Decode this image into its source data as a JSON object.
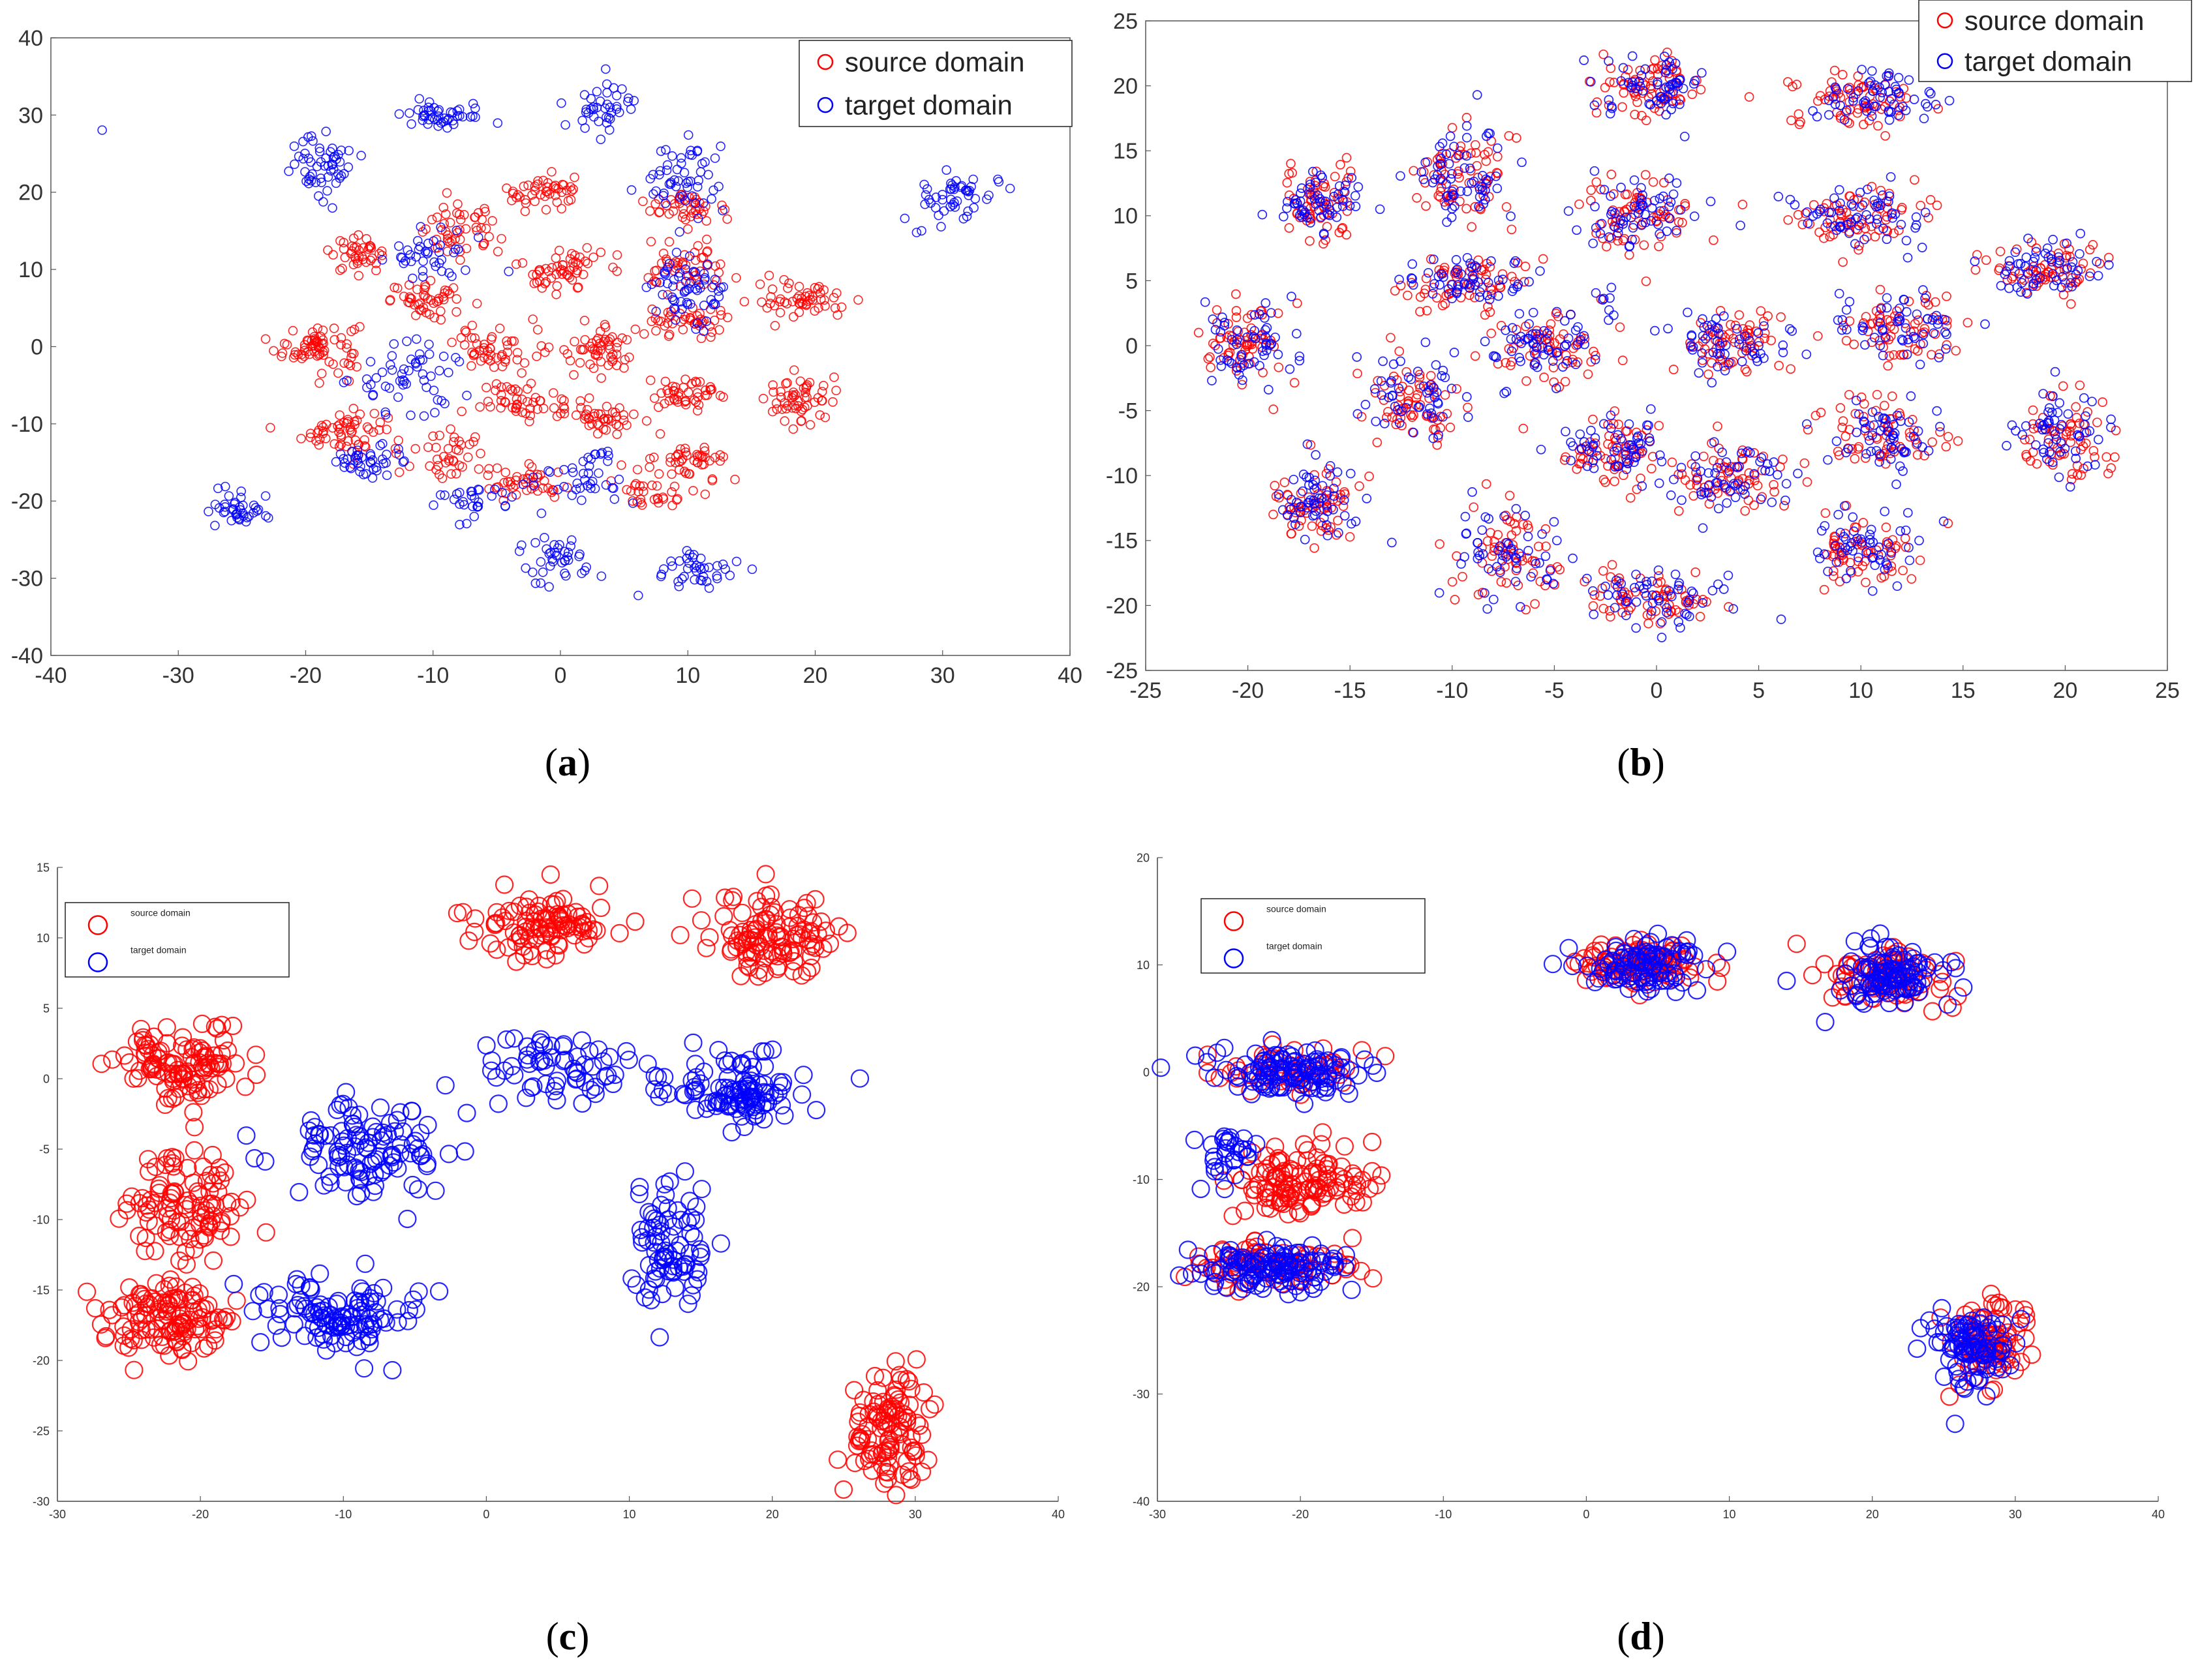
{
  "chart_data": [
    {
      "panel": "a",
      "type": "scatter",
      "caption_label": "a",
      "xlim": [
        -40,
        40
      ],
      "ylim": [
        -40,
        40
      ],
      "xticks": [
        "-40",
        "-30",
        "-20",
        "-10",
        "0",
        "10",
        "20",
        "30",
        "40"
      ],
      "yticks": [
        "40",
        "30",
        "20",
        "10",
        "0",
        "-10",
        "-20",
        "-30",
        "-40"
      ],
      "legend": {
        "position": "top-right",
        "source": "source domain",
        "target": "target domain"
      },
      "colors": {
        "source": "#ff0000",
        "target": "#0000ff"
      },
      "series": [
        {
          "name": "source domain",
          "clusters": [
            [
              -19,
              0,
              3,
              3,
              70
            ],
            [
              -17,
              -11,
              3,
              2.5,
              60
            ],
            [
              -16,
              12,
              2,
              2,
              40
            ],
            [
              -10,
              6,
              3,
              2,
              45
            ],
            [
              -8,
              15,
              3,
              3,
              50
            ],
            [
              -5,
              0,
              3,
              3,
              50
            ],
            [
              -3,
              -7,
              3,
              2,
              45
            ],
            [
              -3,
              -18,
              3,
              2,
              40
            ],
            [
              -1,
              20,
              3,
              2,
              45
            ],
            [
              0,
              10,
              3,
              3,
              55
            ],
            [
              3,
              0,
              3,
              3,
              55
            ],
            [
              3,
              -9,
              3,
              2,
              45
            ],
            [
              7,
              -19,
              3,
              2,
              30
            ],
            [
              10,
              -6,
              3,
              2,
              45
            ],
            [
              10,
              18,
              3,
              2,
              40
            ],
            [
              10,
              10,
              3,
              3,
              50
            ],
            [
              10,
              3,
              3,
              2,
              45
            ],
            [
              10,
              -15,
              3,
              2,
              45
            ],
            [
              19,
              6,
              3,
              2,
              55
            ],
            [
              19,
              -7,
              3,
              3,
              55
            ],
            [
              -9,
              -14,
              3,
              3,
              40
            ]
          ]
        },
        {
          "name": "target domain",
          "clusters": [
            [
              -36,
              28,
              0.1,
              0.1,
              1
            ],
            [
              -25,
              -21,
              2,
              2,
              40
            ],
            [
              -19,
              24,
              2.5,
              4,
              55
            ],
            [
              -9,
              30,
              3.5,
              2,
              45
            ],
            [
              -12,
              -4,
              4,
              4,
              55
            ],
            [
              -15,
              -15,
              3,
              2,
              40
            ],
            [
              -10,
              12,
              3,
              3,
              40
            ],
            [
              2,
              -17,
              3,
              3,
              40
            ],
            [
              0,
              -27,
              2.5,
              3,
              40
            ],
            [
              3,
              31,
              2.5,
              3,
              40
            ],
            [
              10,
              22,
              3,
              4,
              55
            ],
            [
              10,
              7,
              3,
              4,
              60
            ],
            [
              11,
              -29,
              3,
              2.5,
              40
            ],
            [
              31,
              19,
              3,
              3,
              50
            ],
            [
              -7,
              -20,
              3,
              2,
              30
            ]
          ]
        }
      ]
    },
    {
      "panel": "b",
      "type": "scatter",
      "caption_label": "b",
      "xlim": [
        -25,
        25
      ],
      "ylim": [
        -25,
        25
      ],
      "xticks": [
        "-25",
        "-20",
        "-15",
        "-10",
        "-5",
        "0",
        "5",
        "10",
        "15",
        "20",
        "25"
      ],
      "yticks": [
        "25",
        "20",
        "15",
        "10",
        "5",
        "0",
        "-5",
        "-10",
        "-15",
        "-20",
        "-25"
      ],
      "legend": {
        "position": "top-right",
        "source": "source domain",
        "target": "target domain"
      },
      "colors": {
        "source": "#ff0000",
        "target": "#0000ff"
      },
      "series": [
        {
          "name": "source domain",
          "clusters": [
            [
              -0.2,
              20,
              2.3,
              2,
              70
            ],
            [
              10,
              19,
              3.2,
              2,
              70
            ],
            [
              -9.5,
              13,
              2.2,
              3.5,
              70
            ],
            [
              -16.5,
              11,
              1.8,
              2.5,
              65
            ],
            [
              -1,
              10,
              2.5,
              2.5,
              70
            ],
            [
              10,
              10,
              3,
              2,
              70
            ],
            [
              19,
              6,
              2.5,
              1.8,
              65
            ],
            [
              -9,
              5,
              3,
              1.8,
              65
            ],
            [
              -20,
              0,
              2,
              3,
              65
            ],
            [
              -5.5,
              0,
              2.5,
              2.5,
              65
            ],
            [
              3.5,
              0,
              2.5,
              2.5,
              65
            ],
            [
              12,
              1.5,
              2.8,
              2.5,
              65
            ],
            [
              -12,
              -4,
              2.8,
              3,
              65
            ],
            [
              -2,
              -8,
              2.5,
              2.5,
              65
            ],
            [
              3.5,
              -10,
              2.5,
              2.5,
              65
            ],
            [
              11,
              -7,
              2.5,
              2.5,
              65
            ],
            [
              20,
              -7,
              2,
              3,
              65
            ],
            [
              -16.5,
              -12,
              2,
              3,
              65
            ],
            [
              -7.5,
              -16,
              2.5,
              3.5,
              65
            ],
            [
              -0.2,
              -19.5,
              3,
              2,
              65
            ],
            [
              10,
              -16,
              2.5,
              2.5,
              65
            ]
          ]
        },
        {
          "name": "target domain",
          "clusters": [
            [
              -0.2,
              20,
              2.3,
              2,
              60
            ],
            [
              10,
              19,
              3.2,
              2,
              60
            ],
            [
              -9.5,
              13,
              2.2,
              3.5,
              60
            ],
            [
              -16.5,
              11,
              1.8,
              2.5,
              55
            ],
            [
              -1,
              10,
              2.5,
              2.5,
              60
            ],
            [
              10,
              10,
              3,
              2,
              60
            ],
            [
              19,
              6,
              2.5,
              1.8,
              55
            ],
            [
              -9,
              5,
              3,
              1.8,
              55
            ],
            [
              -20,
              0,
              2,
              3,
              55
            ],
            [
              -5.5,
              0,
              2.5,
              2.5,
              55
            ],
            [
              3.5,
              0,
              2.5,
              2.5,
              55
            ],
            [
              12,
              1.5,
              2.8,
              2.5,
              55
            ],
            [
              -12,
              -4,
              2.8,
              3,
              55
            ],
            [
              -2,
              -8,
              2.5,
              2.5,
              55
            ],
            [
              3.5,
              -10,
              2.5,
              2.5,
              55
            ],
            [
              11,
              -7,
              2.5,
              2.5,
              55
            ],
            [
              20,
              -7,
              2,
              3,
              55
            ],
            [
              -16.5,
              -12,
              2,
              3,
              55
            ],
            [
              -7.5,
              -16,
              2.5,
              3.5,
              55
            ],
            [
              -0.2,
              -19.5,
              3,
              2,
              55
            ],
            [
              10,
              -16,
              2.5,
              2.5,
              55
            ],
            [
              -2.5,
              3.5,
              0.5,
              1.5,
              8
            ]
          ]
        }
      ]
    },
    {
      "panel": "c",
      "type": "scatter",
      "caption_label": "c",
      "xlim": [
        -30,
        40
      ],
      "ylim": [
        -30,
        15
      ],
      "xticks": [
        "-30",
        "-20",
        "-10",
        "0",
        "10",
        "20",
        "30",
        "40"
      ],
      "yticks": [
        "15",
        "10",
        "5",
        "0",
        "-5",
        "-10",
        "-15",
        "-20",
        "-25",
        "-30"
      ],
      "legend": {
        "position": "top-left",
        "source": "source domain",
        "target": "target domain"
      },
      "colors": {
        "source": "#ff0000",
        "target": "#0000ff"
      },
      "series": [
        {
          "name": "source domain",
          "clusters": [
            [
              -21,
              1,
              4,
              2.5,
              110
            ],
            [
              -21,
              -9,
              4,
              3.5,
              100
            ],
            [
              -22,
              -17,
              4,
              2.5,
              120
            ],
            [
              4,
              11,
              4,
              2,
              100
            ],
            [
              20,
              10,
              4,
              2.5,
              110
            ],
            [
              28,
              -25,
              2.5,
              4,
              110
            ]
          ]
        },
        {
          "name": "target domain",
          "clusters": [
            [
              -9,
              -5,
              5,
              3,
              110
            ],
            [
              -10,
              -17,
              5,
              2.5,
              110
            ],
            [
              5,
              1,
              5,
              2,
              60
            ],
            [
              17,
              -1,
              5,
              2.5,
              110
            ],
            [
              13,
              -12,
              2.5,
              4,
              80
            ]
          ]
        }
      ]
    },
    {
      "panel": "d",
      "type": "scatter",
      "caption_label": "d",
      "xlim": [
        -30,
        40
      ],
      "ylim": [
        -40,
        20
      ],
      "xticks": [
        "-30",
        "-20",
        "-10",
        "0",
        "10",
        "20",
        "30",
        "40"
      ],
      "yticks": [
        "20",
        "10",
        "0",
        "-10",
        "-20",
        "-30",
        "-40"
      ],
      "legend": {
        "position": "top-left",
        "source": "source domain",
        "target": "target domain"
      },
      "colors": {
        "source": "#ff0000",
        "target": "#0000ff"
      },
      "series": [
        {
          "name": "source domain",
          "clusters": [
            [
              4,
              10,
              4,
              2,
              100
            ],
            [
              21,
              9,
              4,
              2.5,
              90
            ],
            [
              -20,
              -10,
              5,
              3,
              120
            ],
            [
              -22,
              -18,
              5,
              2,
              80
            ],
            [
              28,
              -25,
              2.5,
              4,
              90
            ],
            [
              -21,
              0,
              5,
              2,
              50
            ]
          ]
        },
        {
          "name": "target domain",
          "clusters": [
            [
              4,
              10,
              4,
              2,
              90
            ],
            [
              21,
              9,
              4,
              2.5,
              100
            ],
            [
              -21,
              0,
              5,
              2,
              110
            ],
            [
              -22,
              -18,
              5,
              2,
              120
            ],
            [
              27,
              -26,
              2.5,
              4,
              90
            ],
            [
              -25,
              -8,
              2,
              3,
              30
            ]
          ]
        }
      ]
    }
  ]
}
